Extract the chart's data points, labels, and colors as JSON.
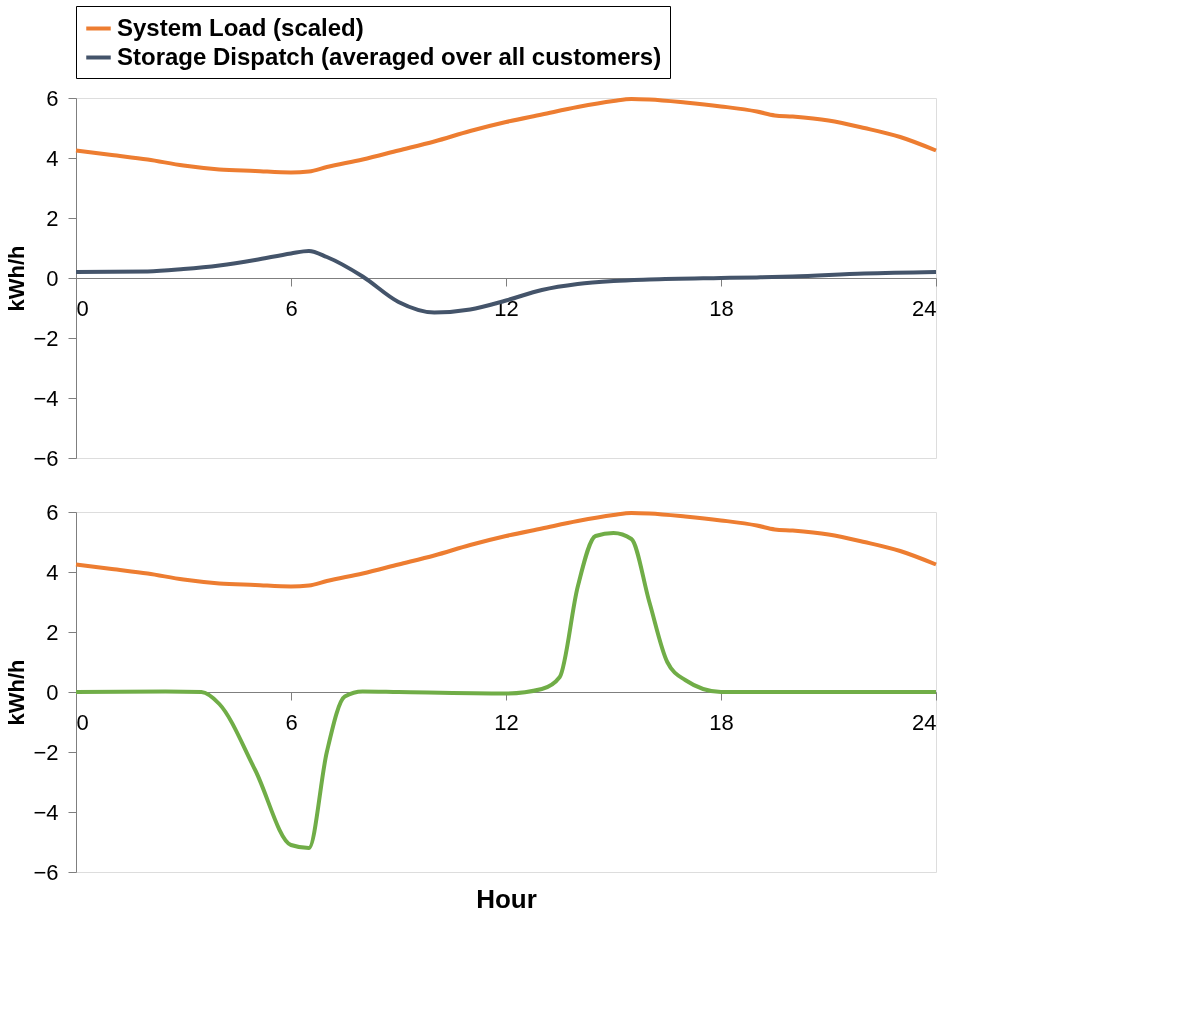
{
  "chart_data": [
    {
      "type": "line",
      "ylabel": "kWh/h",
      "xlim": [
        0,
        24
      ],
      "ylim": [
        -6,
        6
      ],
      "xticks": [
        0,
        6,
        12,
        18,
        24
      ],
      "yticks": [
        -6,
        -4,
        -2,
        0,
        2,
        4,
        6
      ],
      "grid": false,
      "legend": "top",
      "marker": "none",
      "line_style": "solid",
      "series": [
        {
          "name": "System Load (scaled)",
          "color": "#ed7d31",
          "x": [
            0,
            1,
            2,
            3,
            4,
            5,
            6,
            6.5,
            7,
            8,
            9,
            10,
            11,
            12,
            13,
            14,
            15,
            15.5,
            16,
            17,
            18,
            19,
            19.5,
            20,
            21,
            22,
            23,
            24
          ],
          "values": [
            4.25,
            4.1,
            3.95,
            3.75,
            3.62,
            3.57,
            3.52,
            3.55,
            3.7,
            3.95,
            4.25,
            4.55,
            4.9,
            5.2,
            5.45,
            5.7,
            5.9,
            5.97,
            5.95,
            5.85,
            5.72,
            5.55,
            5.42,
            5.38,
            5.25,
            5.0,
            4.7,
            4.25
          ]
        },
        {
          "name": "Storage Dispatch (averaged over all customers)",
          "color": "#44546a",
          "x": [
            0,
            2,
            3,
            4,
            5,
            6,
            6.5,
            7,
            8,
            9,
            10,
            11,
            12,
            13,
            14,
            15,
            16,
            18,
            19,
            20,
            22,
            24
          ],
          "values": [
            0.2,
            0.22,
            0.3,
            0.42,
            0.6,
            0.82,
            0.9,
            0.7,
            0.05,
            -0.8,
            -1.15,
            -1.05,
            -0.75,
            -0.4,
            -0.2,
            -0.1,
            -0.05,
            0,
            0.02,
            0.05,
            0.15,
            0.2
          ]
        }
      ]
    },
    {
      "type": "line",
      "xlabel": "Hour",
      "ylabel": "kWh/h",
      "xlim": [
        0,
        24
      ],
      "ylim": [
        -6,
        6
      ],
      "xticks": [
        0,
        6,
        12,
        18,
        24
      ],
      "yticks": [
        -6,
        -4,
        -2,
        0,
        2,
        4,
        6
      ],
      "grid": false,
      "marker": "none",
      "line_style": "solid",
      "series": [
        {
          "color": "#ed7d31",
          "x": [
            0,
            1,
            2,
            3,
            4,
            5,
            6,
            6.5,
            7,
            8,
            9,
            10,
            11,
            12,
            13,
            14,
            15,
            15.5,
            16,
            17,
            18,
            19,
            19.5,
            20,
            21,
            22,
            23,
            24
          ],
          "values": [
            4.25,
            4.1,
            3.95,
            3.75,
            3.62,
            3.57,
            3.52,
            3.55,
            3.7,
            3.95,
            4.25,
            4.55,
            4.9,
            5.2,
            5.45,
            5.7,
            5.9,
            5.97,
            5.95,
            5.85,
            5.72,
            5.55,
            5.42,
            5.38,
            5.25,
            5.0,
            4.7,
            4.25
          ]
        },
        {
          "color": "#70ad47",
          "x": [
            0,
            2.5,
            3.5,
            4,
            5,
            6,
            6.5,
            7,
            7.5,
            8,
            9,
            12,
            13,
            13.5,
            14,
            14.5,
            15,
            15.5,
            16,
            16.5,
            17,
            18,
            24
          ],
          "values": [
            0,
            0.02,
            0,
            -0.4,
            -2.6,
            -5.1,
            -5.2,
            -2,
            -0.15,
            0.02,
            0,
            -0.05,
            0.1,
            0.5,
            3.5,
            5.2,
            5.3,
            5.1,
            3.0,
            1.0,
            0.4,
            0,
            0
          ]
        }
      ]
    }
  ]
}
